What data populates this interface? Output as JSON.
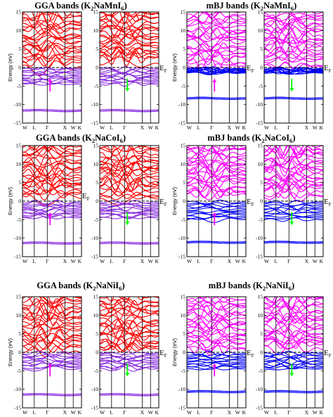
{
  "figure": {
    "rows": [
      {
        "compound": "K2NaMnI6",
        "titles": [
          {
            "method": "GGA bands",
            "text": "GGA bands (K",
            "sub1": "2",
            "mid": "NaMnI",
            "sub2": "6",
            "end": ")"
          },
          {
            "method": "mBJ bands",
            "text": "mBJ bands (K",
            "sub1": "2",
            "mid": "NaMnI",
            "sub2": "6",
            "end": ")"
          }
        ]
      },
      {
        "compound": "K2NaCoI6",
        "titles": [
          {
            "method": "GGA bands",
            "text": "GGA bands (K",
            "sub1": "2",
            "mid": "NaCoI",
            "sub2": "6",
            "end": ")"
          },
          {
            "method": "mBJ bands",
            "text": "mBJ bands (K",
            "sub1": "2",
            "mid": "NaCoI",
            "sub2": "6",
            "end": ")"
          }
        ]
      },
      {
        "compound": "K2NaNiI6",
        "titles": [
          {
            "method": "GGA bands",
            "text": "GGA bands (K",
            "sub1": "2",
            "mid": "NaNiI",
            "sub2": "6",
            "end": ")"
          },
          {
            "method": "mBJ bands",
            "text": "mBJ bands (K",
            "sub1": "2",
            "mid": "NaNiI",
            "sub2": "6",
            "end": ")"
          }
        ]
      }
    ],
    "fermi_label": "E",
    "fermi_sub": "F",
    "colors": {
      "gga_conduction": "#ff0000",
      "gga_valence": "#8a2be2",
      "mbj_conduction": "#ff00ff",
      "mbj_valence": "#0000ff",
      "spin_up_arrow": "#ff00ff",
      "spin_down_arrow": "#00ff00",
      "fermi_line": "#000000"
    }
  },
  "chart_data": [
    {
      "type": "line",
      "panel": "K2NaMnI6 GGA spin-up",
      "ylabel": "Energy (eV)",
      "ylim": [
        -15,
        15
      ],
      "yticks": [
        -15,
        -10,
        -5,
        0,
        5,
        10,
        15
      ],
      "xticklabels": [
        "W",
        "L",
        "Γ",
        "X",
        "W",
        "K"
      ],
      "fermi_level": 0,
      "spin": "up",
      "bands": {
        "conduction_range": [
          0.5,
          15
        ],
        "valence_range": [
          -4.5,
          -0.3
        ],
        "deep_band": -11.8
      }
    },
    {
      "type": "line",
      "panel": "K2NaMnI6 GGA spin-down",
      "ylim": [
        -15,
        15
      ],
      "yticks": [
        -15,
        -10,
        -5,
        0,
        5,
        10,
        15
      ],
      "xticklabels": [
        "W",
        "L",
        "Γ",
        "X",
        "W",
        "K"
      ],
      "fermi_level": 0,
      "spin": "down",
      "bands": {
        "conduction_range": [
          1.5,
          15
        ],
        "valence_range": [
          -4.5,
          -0.3
        ],
        "deep_band": -11.8
      }
    },
    {
      "type": "line",
      "panel": "K2NaMnI6 mBJ spin-up",
      "ylabel": "Energy (eV)",
      "ylim": [
        -15,
        15
      ],
      "yticks": [
        -15,
        -10,
        -5,
        0,
        5,
        10,
        15
      ],
      "xticklabels": [
        "W",
        "L",
        "Γ",
        "X",
        "W",
        "K"
      ],
      "fermi_level": 0,
      "spin": "up",
      "bands": {
        "conduction_range": [
          0.5,
          15
        ],
        "valence_range": [
          -1.5,
          -0.3
        ],
        "deep_band": -8.5
      }
    },
    {
      "type": "line",
      "panel": "K2NaMnI6 mBJ spin-down",
      "ylim": [
        -15,
        15
      ],
      "yticks": [
        -15,
        -10,
        -5,
        0,
        5,
        10,
        15
      ],
      "xticklabels": [
        "W",
        "L",
        "Γ",
        "X",
        "W",
        "K"
      ],
      "fermi_level": 0,
      "spin": "down",
      "bands": {
        "conduction_range": [
          0.5,
          15
        ],
        "valence_range": [
          -1.5,
          -0.3
        ],
        "deep_band": -8.5
      }
    },
    {
      "type": "line",
      "panel": "K2NaCoI6 GGA spin-up",
      "ylabel": "Energy (eV)",
      "ylim": [
        -15,
        15
      ],
      "yticks": [
        -15,
        -10,
        -5,
        0,
        5,
        10,
        15
      ],
      "xticklabels": [
        "W",
        "L",
        "Γ",
        "X",
        "W",
        "K"
      ],
      "fermi_level": 0,
      "spin": "up",
      "bands": {
        "conduction_range": [
          1.0,
          15
        ],
        "valence_range": [
          -4.5,
          -0.3
        ],
        "deep_band": -11.5
      }
    },
    {
      "type": "line",
      "panel": "K2NaCoI6 GGA spin-down",
      "ylim": [
        -15,
        15
      ],
      "yticks": [
        -15,
        -10,
        -5,
        0,
        5,
        10,
        15
      ],
      "xticklabels": [
        "W",
        "L",
        "Γ",
        "X",
        "W",
        "K"
      ],
      "fermi_level": 0,
      "spin": "down",
      "bands": {
        "conduction_range": [
          1.0,
          15
        ],
        "valence_range": [
          -4.5,
          -0.3
        ],
        "deep_band": -11.5
      }
    },
    {
      "type": "line",
      "panel": "K2NaCoI6 mBJ spin-up",
      "ylabel": "Energy (eV)",
      "ylim": [
        -15,
        15
      ],
      "yticks": [
        -15,
        -10,
        -5,
        0,
        5,
        10,
        15
      ],
      "xticklabels": [
        "W",
        "L",
        "Γ",
        "X",
        "W",
        "K"
      ],
      "fermi_level": 0,
      "spin": "up",
      "bands": {
        "conduction_range": [
          1.5,
          15
        ],
        "valence_range": [
          -5.0,
          -0.3
        ],
        "deep_band": -11.3
      }
    },
    {
      "type": "line",
      "panel": "K2NaCoI6 mBJ spin-down",
      "ylim": [
        -15,
        15
      ],
      "yticks": [
        -15,
        -10,
        -5,
        0,
        5,
        10,
        15
      ],
      "xticklabels": [
        "W",
        "L",
        "Γ",
        "X",
        "W",
        "K"
      ],
      "fermi_level": 0,
      "spin": "down",
      "bands": {
        "conduction_range": [
          1.5,
          15
        ],
        "valence_range": [
          -5.0,
          -0.3
        ],
        "deep_band": -11.3
      }
    },
    {
      "type": "line",
      "panel": "K2NaNiI6 GGA spin-up",
      "ylabel": "Energy (eV)",
      "ylim": [
        -15,
        15
      ],
      "yticks": [
        -15,
        -10,
        -5,
        0,
        5,
        10,
        15
      ],
      "xticklabels": [
        "W",
        "L",
        "Γ",
        "X",
        "W",
        "K"
      ],
      "fermi_level": 0,
      "spin": "up",
      "bands": {
        "conduction_range": [
          0.5,
          15
        ],
        "valence_range": [
          -4.5,
          -0.3
        ],
        "deep_band": -11.6
      }
    },
    {
      "type": "line",
      "panel": "K2NaNiI6 GGA spin-down",
      "ylim": [
        -15,
        15
      ],
      "yticks": [
        -15,
        -10,
        -5,
        0,
        5,
        10,
        15
      ],
      "xticklabels": [
        "W",
        "L",
        "Γ",
        "X",
        "W",
        "K"
      ],
      "fermi_level": 0,
      "spin": "down",
      "bands": {
        "conduction_range": [
          0.5,
          15
        ],
        "valence_range": [
          -4.5,
          -0.3
        ],
        "deep_band": -11.6
      }
    },
    {
      "type": "line",
      "panel": "K2NaNiI6 mBJ spin-up",
      "ylabel": "Energy (eV)",
      "ylim": [
        -15,
        15
      ],
      "yticks": [
        -15,
        -10,
        -5,
        0,
        5,
        10,
        15
      ],
      "xticklabels": [
        "W",
        "L",
        "Γ",
        "X",
        "W",
        "K"
      ],
      "fermi_level": 0,
      "spin": "up",
      "bands": {
        "conduction_range": [
          1.0,
          15
        ],
        "valence_range": [
          -4.5,
          -0.3
        ],
        "deep_band": -10.8
      }
    },
    {
      "type": "line",
      "panel": "K2NaNiI6 mBJ spin-down",
      "ylim": [
        -15,
        15
      ],
      "yticks": [
        -15,
        -10,
        -5,
        0,
        5,
        10,
        15
      ],
      "xticklabels": [
        "W",
        "L",
        "Γ",
        "X",
        "W",
        "K"
      ],
      "fermi_level": 0,
      "spin": "down",
      "bands": {
        "conduction_range": [
          1.0,
          15
        ],
        "valence_range": [
          -4.5,
          -0.3
        ],
        "deep_band": -10.8
      }
    }
  ]
}
